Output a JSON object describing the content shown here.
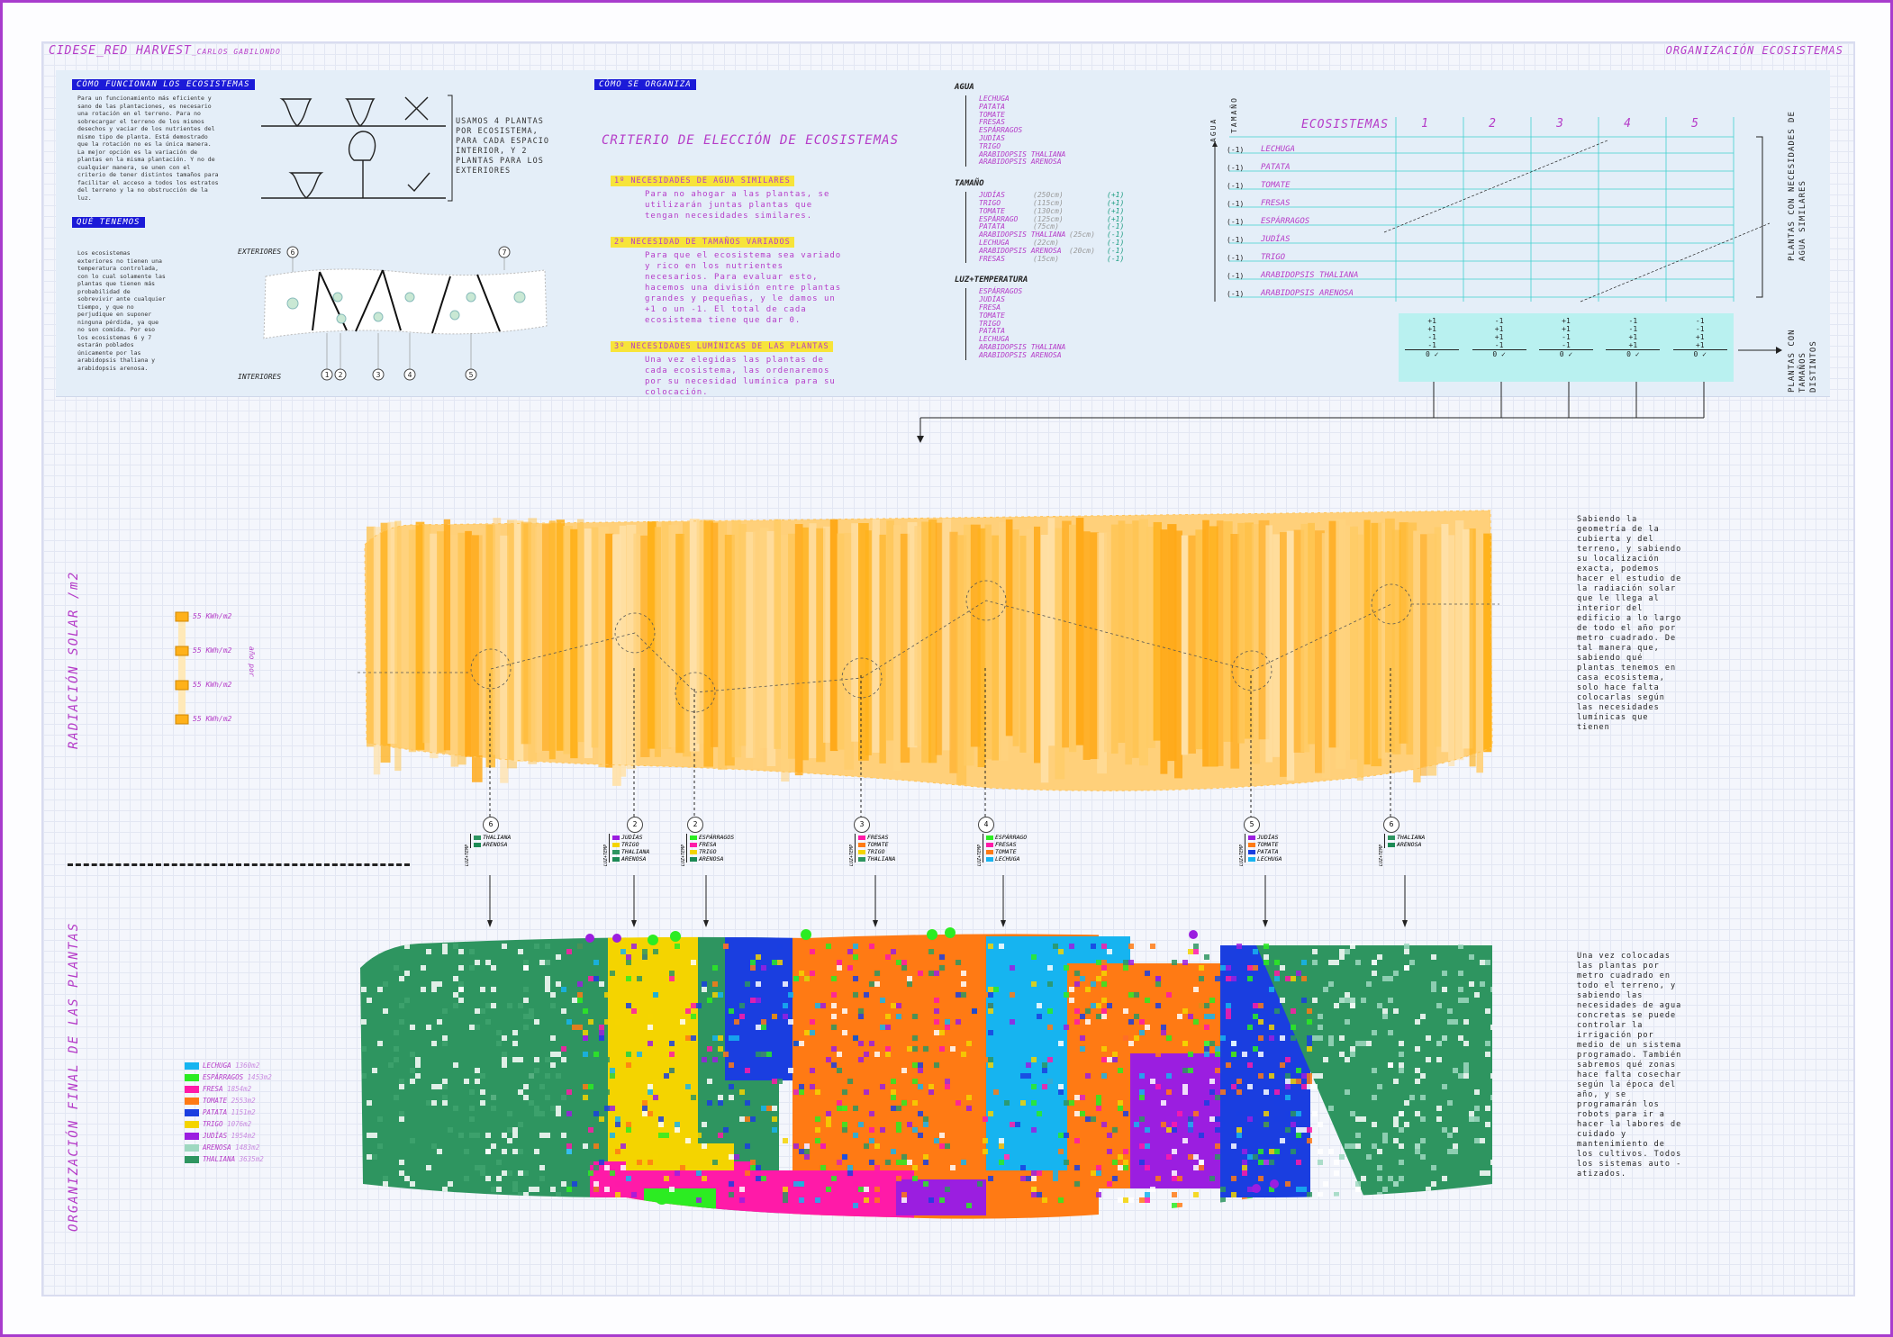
{
  "header": {
    "title_left": "CIDESE_RED HARVEST",
    "author": "_CARLOS GABILONDO",
    "title_right": "ORGANIZACIÓN ECOSISTEMAS"
  },
  "section_tags": {
    "how_work": "CÓMO FUNCIONAN LOS ECOSISTEMAS",
    "what_have": "QUÉ TENEMOS",
    "how_organize": "CÓMO SE ORGANIZA"
  },
  "how_work_text": "Para un funcionamiento más eficiente y sano de las plantaciones, es necesario una rotación en el terreno. Para no sobrecargar el terreno de los mismos desechos y vaciar de los nutrientes del mismo tipo de planta. Está demostrado que la rotación no es la única manera. La mejor opción es la variación de plantas en la misma plantación. Y no de cualquier manera, se unen con el criterio de tener distintos tamaños para facilitar el acceso a todos los estratos del terreno y la no obstrucción de la luz.",
  "what_have_text": "Los ecosistemas exteriores no tienen una temperatura controlada, con lo cual solamente las plantas que tienen más probabilidad de sobrevivir ante cualquier tiempo, y que no perjudique en suponer ninguna pérdida, ya que no son comida. Por eso los ecosistemas 6 y 7 estarán poblados únicamente por las arabidopsis thaliana y arabidopsis arenosa.",
  "plants_note": "USAMOS 4 PLANTAS POR ECOSISTEMA, PARA CADA ESPACIO INTERIOR, Y 2 PLANTAS PARA LOS EXTERIORES",
  "section_labels": {
    "exteriores": "EXTERIORES",
    "interiores": "INTERIORES"
  },
  "criteria": {
    "title": "CRITERIO DE ELECCIÓN DE ECOSISTEMAS",
    "items": [
      {
        "head": "1º NECESIDADES DE AGUA SIMILARES",
        "body": "Para no ahogar a las plantas, se utilizarán juntas plantas que tengan necesidades similares."
      },
      {
        "head": "2º NECESIDAD DE TAMAÑOS VARIADOS",
        "body": "Para que el ecosistema sea variado y rico en los nutrientes necesarios. Para evaluar esto, hacemos una división entre plantas grandes y pequeñas, y le damos un +1 o un -1. El total de cada ecosistema tiene que dar 0."
      },
      {
        "head": "3º NECESIDADES LUMÍNICAS DE LAS PLANTAS",
        "body": "Una vez elegidas las plantas de cada ecosistema, las ordenaremos por su necesidad lumínica para su colocación."
      }
    ]
  },
  "agua": {
    "title": "AGUA",
    "items": [
      "LECHUGA",
      "PATATA",
      "TOMATE",
      "FRESAS",
      "ESPÁRRAGOS",
      "JUDÍAS",
      "TRIGO",
      "ARABIDOPSIS THALIANA",
      "ARABIDOPSIS ARENOSA"
    ]
  },
  "tamano": {
    "title": "TAMAÑO",
    "items": [
      {
        "name": "JUDÍAS",
        "size": "(250cm)",
        "val": "(+1)"
      },
      {
        "name": "TRIGO",
        "size": "(115cm)",
        "val": "(+1)"
      },
      {
        "name": "TOMATE",
        "size": "(130cm)",
        "val": "(+1)"
      },
      {
        "name": "ESPÁRRAGO",
        "size": "(125cm)",
        "val": "(+1)"
      },
      {
        "name": "PATATA",
        "size": "(75cm)",
        "val": "(-1)"
      },
      {
        "name": "ARABIDOPSIS THALIANA",
        "size": "(25cm)",
        "val": "(-1)"
      },
      {
        "name": "LECHUGA",
        "size": "(22cm)",
        "val": "(-1)"
      },
      {
        "name": "ARABIDOPSIS ARENOSA",
        "size": "(20cm)",
        "val": "(-1)"
      },
      {
        "name": "FRESAS",
        "size": "(15cm)",
        "val": "(-1)"
      }
    ]
  },
  "luz": {
    "title": "LUZ+TEMPERATURA",
    "items": [
      "ESPÁRRAGOS",
      "JUDÍAS",
      "FRESA",
      "TOMATE",
      "TRIGO",
      "PATATA",
      "LECHUGA",
      "ARABIDOPSIS THALIANA",
      "ARABIDOPSIS ARENOSA"
    ]
  },
  "matrix": {
    "axis_agua": "AGUA",
    "axis_tamano": "TAMAÑO",
    "title": "ECOSISTEMAS",
    "columns": [
      "1",
      "2",
      "3",
      "4",
      "5"
    ],
    "rows": [
      {
        "val": "(-1)",
        "name": "LECHUGA"
      },
      {
        "val": "(-1)",
        "name": "PATATA"
      },
      {
        "val": "(-1)",
        "name": "TOMATE"
      },
      {
        "val": "(-1)",
        "name": "FRESAS"
      },
      {
        "val": "(-1)",
        "name": "ESPÁRRAGOS"
      },
      {
        "val": "(-1)",
        "name": "JUDÍAS"
      },
      {
        "val": "(-1)",
        "name": "TRIGO"
      },
      {
        "val": "(-1)",
        "name": "ARABIDOPSIS THALIANA"
      },
      {
        "val": "(-1)",
        "name": "ARABIDOPSIS ARENOSA"
      }
    ],
    "right_label": "PLANTAS CON NECESIDADES DE AGUA SIMILARES",
    "sums": [
      {
        "vals": [
          "+1",
          "+1",
          "-1",
          "-1"
        ],
        "total": "0 ✓"
      },
      {
        "vals": [
          "-1",
          "+1",
          "+1",
          "-1"
        ],
        "total": "0 ✓"
      },
      {
        "vals": [
          "+1",
          "+1",
          "-1",
          "-1"
        ],
        "total": "0 ✓"
      },
      {
        "vals": [
          "-1",
          "-1",
          "+1",
          "+1"
        ],
        "total": "0 ✓"
      },
      {
        "vals": [
          "-1",
          "-1",
          "+1",
          "+1"
        ],
        "total": "0 ✓"
      }
    ],
    "sums_label": "PLANTAS CON TAMAÑOS DISTINTOS"
  },
  "solar": {
    "vertical_title": "RADIACIÓN SOLAR /m2",
    "scale_label": "año por",
    "scale": [
      "55 KWh/m2",
      "55 KWh/m2",
      "55 KWh/m2",
      "55 KWh/m2"
    ],
    "side_text": "Sabiendo la geometría de la cubierta y del terreno, y sabiendo su localización exacta, podemos hacer el estudio de la radiación solar que le llega al interior del edificio a lo largo de todo el año por metro cuadrado. De tal manera que, sabiendo qué plantas tenemos en casa ecosistema, solo hace falta colocarlas según las necesidades lumínicas que tienen"
  },
  "ecos_markers": [
    "6",
    "2",
    "2",
    "3",
    "4",
    "5",
    "6"
  ],
  "eco_tags": [
    {
      "plants": [
        "THALIANA",
        "ARENOSA"
      ],
      "colors": [
        "#2e9560",
        "#1c8a55"
      ]
    },
    {
      "plants": [
        "JUDÍAS",
        "TRIGO",
        "THALIANA",
        "ARENOSA"
      ],
      "colors": [
        "#9b1ee0",
        "#f4d400",
        "#2e9560",
        "#1c8a55"
      ]
    },
    {
      "plants": [
        "ESPÁRRAGOS",
        "FRESA",
        "TRIGO",
        "ARENOSA"
      ],
      "colors": [
        "#2cec22",
        "#ff1aa8",
        "#f4d400",
        "#1c8a55"
      ]
    },
    {
      "plants": [
        "FRESAS",
        "TOMATE",
        "TRIGO",
        "THALIANA"
      ],
      "colors": [
        "#ff1aa8",
        "#ff7a14",
        "#f4d400",
        "#2e9560"
      ]
    },
    {
      "plants": [
        "ESPÁRRAGO",
        "FRESAS",
        "TOMATE",
        "LECHUGA"
      ],
      "colors": [
        "#2cec22",
        "#ff1aa8",
        "#ff7a14",
        "#16b4f0"
      ]
    },
    {
      "plants": [
        "JUDÍAS",
        "TOMATE",
        "PATATA",
        "LECHUGA"
      ],
      "colors": [
        "#9b1ee0",
        "#ff7a14",
        "#1a3ee0",
        "#16b4f0"
      ]
    },
    {
      "plants": [
        "THALIANA",
        "ARENOSA"
      ],
      "colors": [
        "#2e9560",
        "#1c8a55"
      ]
    }
  ],
  "tag_axis_label": "LUZ+TEMP",
  "final": {
    "vertical_title": "ORGANIZACIÓN FINAL DE LAS PLANTAS",
    "legend": [
      {
        "name": "LECHUGA",
        "area": "1360m2",
        "color": "#16b4f0"
      },
      {
        "name": "ESPÁRRAGOS",
        "area": "1453m2",
        "color": "#2cec22"
      },
      {
        "name": "FRESA",
        "area": "1854m2",
        "color": "#ff1aa8"
      },
      {
        "name": "TOMATE",
        "area": "2553m2",
        "color": "#ff7a14"
      },
      {
        "name": "PATATA",
        "area": "1151m2",
        "color": "#1a3ee0"
      },
      {
        "name": "TRIGO",
        "area": "1076m2",
        "color": "#f4d400"
      },
      {
        "name": "JUDÍAS",
        "area": "1954m2",
        "color": "#9b1ee0"
      },
      {
        "name": "ARENOSA",
        "area": "1483m2",
        "color": "#9ed8c0"
      },
      {
        "name": "THALIANA",
        "area": "3635m2",
        "color": "#2e9560"
      }
    ],
    "side_text": "Una vez colocadas las plantas por metro cuadrado en todo el terreno, y sabiendo las necesidades de agua concretas se puede controlar la irrigación por medio de un sistema programado. También sabremos qué zonas hace falta cosechar según la época del año, y se programarán los robots para ir a hacer la labores de cuidado y mantenimiento de los cultivos. Todos los sistemas auto -atizados."
  },
  "colors": {
    "accent": "#b53cc8",
    "blue_tag": "#1b1ad8",
    "highlight": "#f7e43a",
    "solar_dark": "#ffb11a",
    "solar_light": "#ffe1a8"
  }
}
